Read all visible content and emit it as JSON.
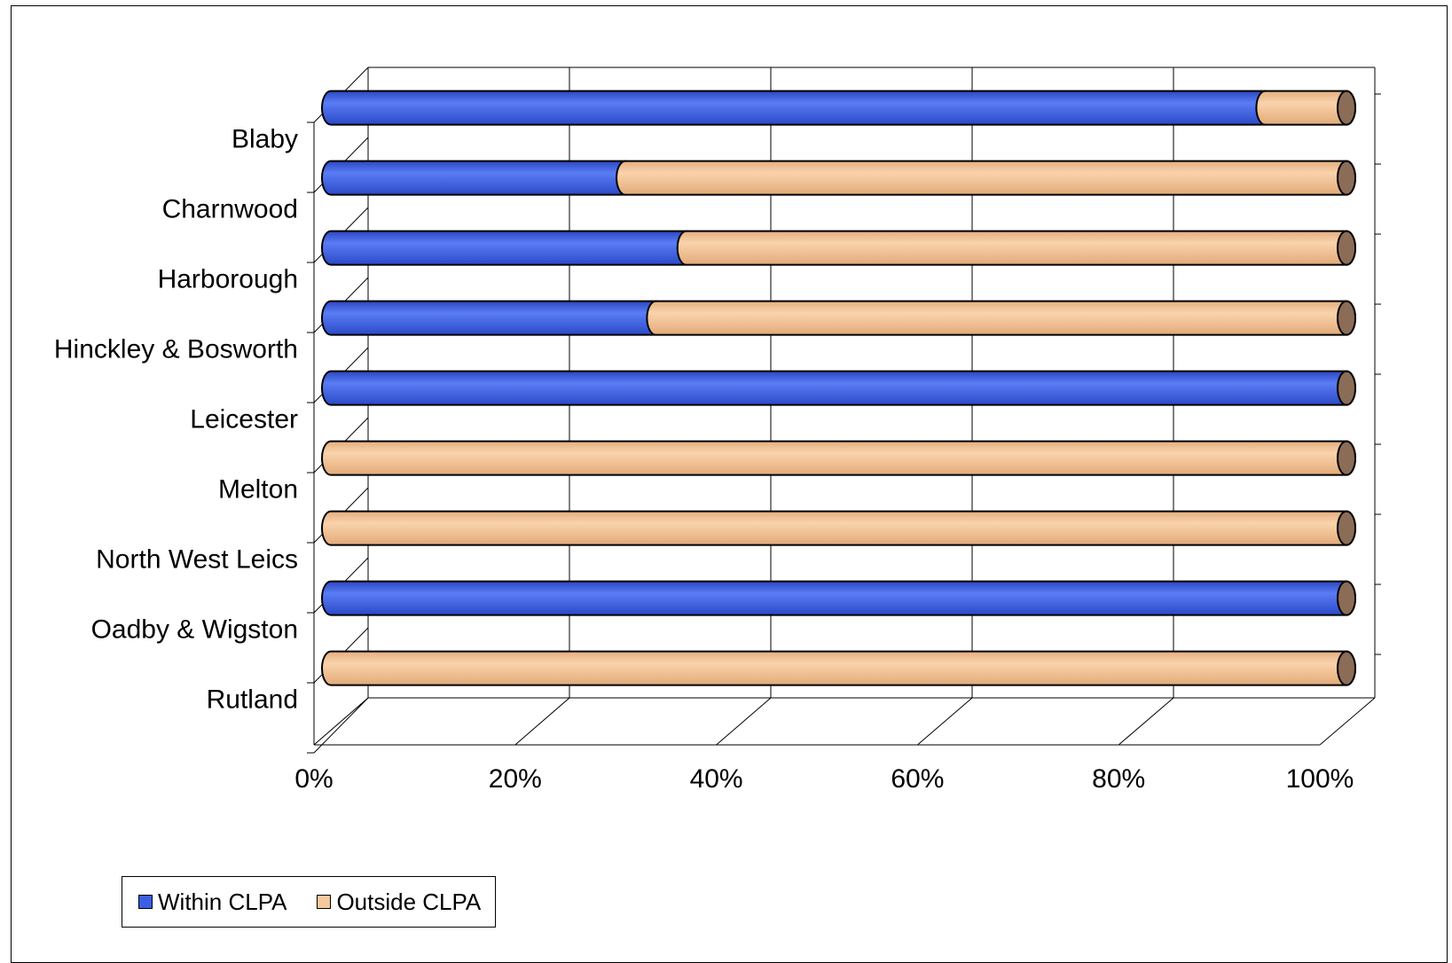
{
  "chart_data": {
    "type": "bar",
    "orientation": "horizontal",
    "stacked": "percent",
    "style": "3d-cylinder",
    "categories": [
      "Blaby",
      "Charnwood",
      "Harborough",
      "Hinckley & Bosworth",
      "Leicester",
      "Melton",
      "North West Leics",
      "Oadby & Wigston",
      "Rutland"
    ],
    "series": [
      {
        "name": "Within CLPA",
        "color": "#3B5FE3",
        "values": [
          92,
          29,
          35,
          32,
          100,
          0,
          0,
          100,
          0
        ]
      },
      {
        "name": "Outside CLPA",
        "color": "#F7C89B",
        "values": [
          8,
          71,
          65,
          68,
          0,
          100,
          100,
          0,
          100
        ]
      }
    ],
    "xaxis": {
      "ticks": [
        "0%",
        "20%",
        "40%",
        "60%",
        "80%",
        "100%"
      ],
      "range": [
        0,
        100
      ]
    },
    "grid": true,
    "legend": "bottom-left"
  }
}
